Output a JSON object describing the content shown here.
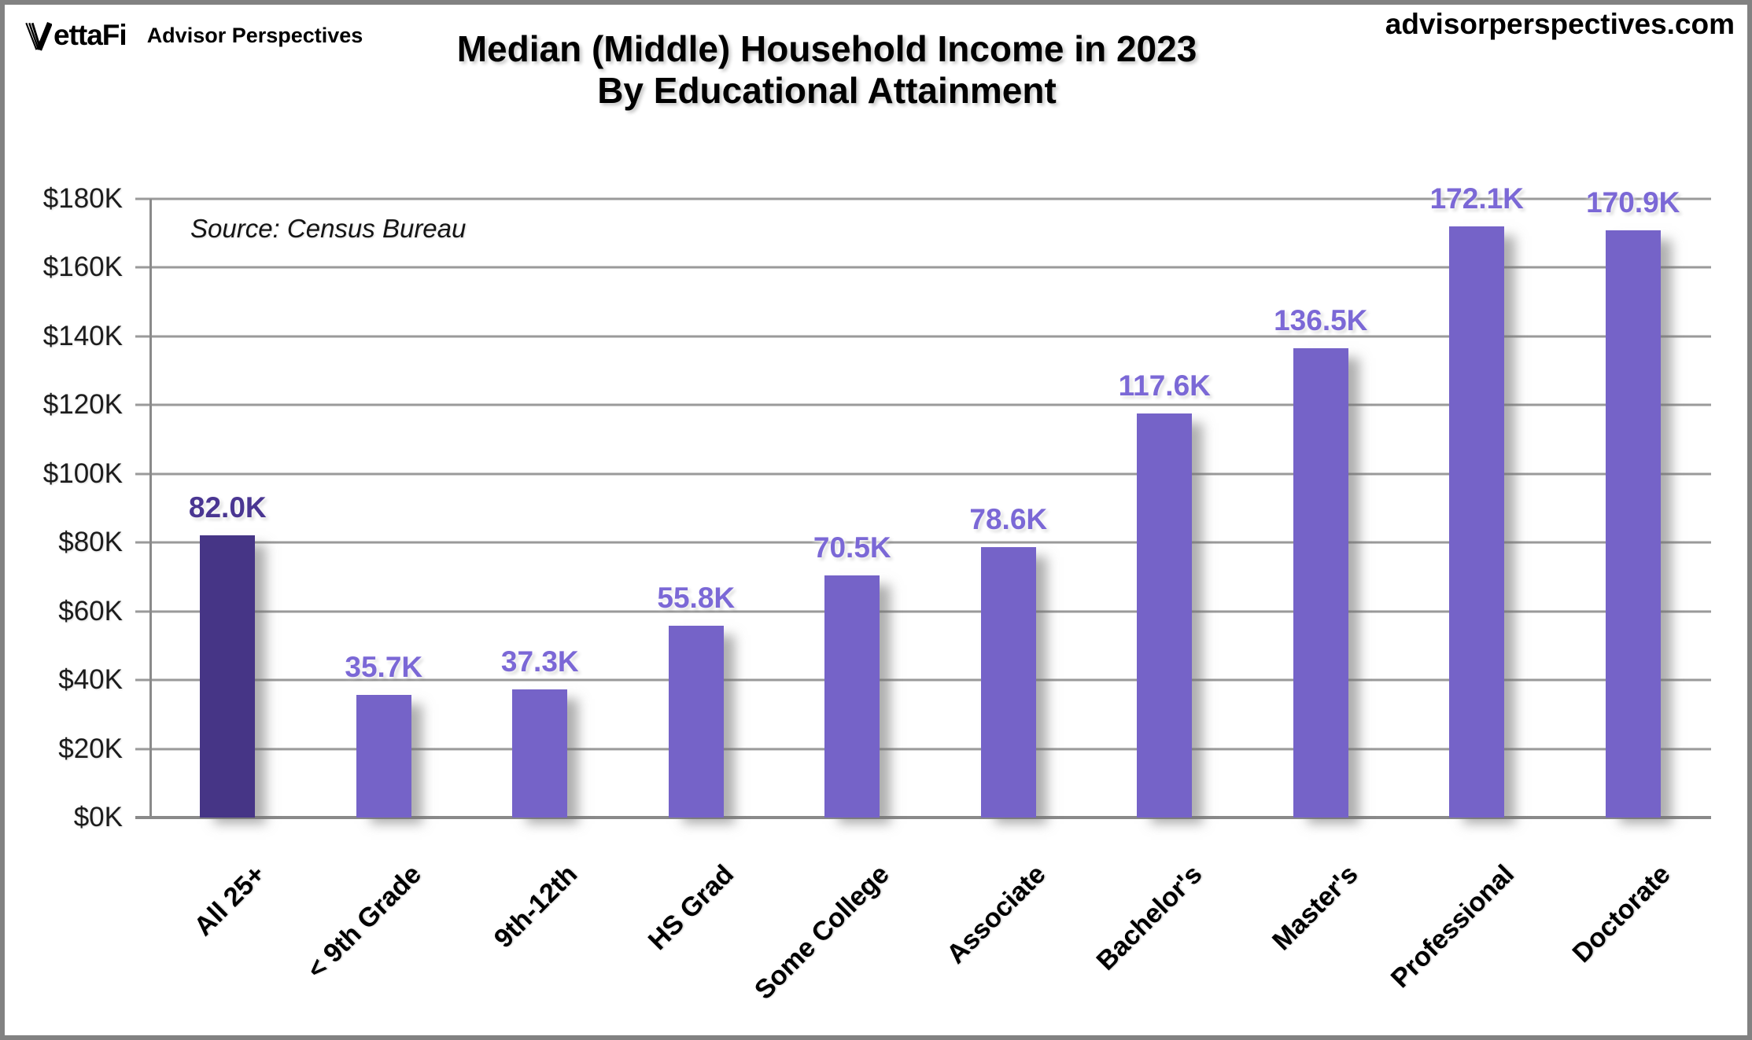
{
  "header": {
    "brand": "ettaFi",
    "brand_suffix": "Advisor Perspectives",
    "site_url": "advisorperspectives.com",
    "title_line1": "Median (Middle) Household Income in 2023",
    "title_line2": "By Educational Attainment"
  },
  "source_note": "Source: Census Bureau",
  "chart_data": {
    "type": "bar",
    "title": "Median (Middle) Household Income in 2023 By Educational Attainment",
    "source": "Source: Census Bureau",
    "categories": [
      "All 25+",
      "< 9th Grade",
      "9th-12th",
      "HS Grad",
      "Some College",
      "Associate",
      "Bachelor's",
      "Master's",
      "Professional",
      "Doctorate"
    ],
    "values": [
      82.0,
      35.7,
      37.3,
      55.8,
      70.5,
      78.6,
      117.6,
      136.5,
      172.1,
      170.9
    ],
    "value_labels": [
      "82.0K",
      "35.7K",
      "37.3K",
      "55.8K",
      "70.5K",
      "78.6K",
      "117.6K",
      "136.5K",
      "172.1K",
      "170.9K"
    ],
    "unit": "thousand USD",
    "xlabel": "",
    "ylabel": "",
    "ylim": [
      0,
      180
    ],
    "ytick_step": 20,
    "ytick_labels": [
      "$0K",
      "$20K",
      "$40K",
      "$60K",
      "$80K",
      "$100K",
      "$120K",
      "$140K",
      "$160K",
      "$180K"
    ],
    "grid": true,
    "legend_position": "none",
    "highlight_index": 0,
    "colors": {
      "bar_highlight": "#463586",
      "bar_default": "#7563c8",
      "label_highlight": "#4a3692",
      "label_default": "#7b68d6",
      "gridline": "#9a9a9a",
      "axis": "#8a8a8a"
    }
  }
}
